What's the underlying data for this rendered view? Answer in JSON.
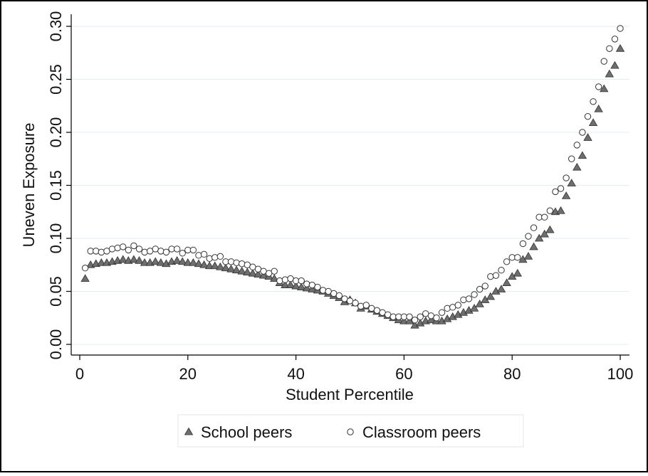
{
  "chart_data": {
    "type": "scatter",
    "xlabel": "Student Percentile",
    "ylabel": "Uneven Exposure",
    "x": [
      1,
      2,
      3,
      4,
      5,
      6,
      7,
      8,
      9,
      10,
      11,
      12,
      13,
      14,
      15,
      16,
      17,
      18,
      19,
      20,
      21,
      22,
      23,
      24,
      25,
      26,
      27,
      28,
      29,
      30,
      31,
      32,
      33,
      34,
      35,
      36,
      37,
      38,
      39,
      40,
      41,
      42,
      43,
      44,
      45,
      46,
      47,
      48,
      49,
      50,
      51,
      52,
      53,
      54,
      55,
      56,
      57,
      58,
      59,
      60,
      61,
      62,
      63,
      64,
      65,
      66,
      67,
      68,
      69,
      70,
      71,
      72,
      73,
      74,
      75,
      76,
      77,
      78,
      79,
      80,
      81,
      82,
      83,
      84,
      85,
      86,
      87,
      88,
      89,
      90,
      91,
      92,
      93,
      94,
      95,
      96,
      97,
      98,
      99,
      100
    ],
    "series": [
      {
        "name": "School peers",
        "color": "#6e6e6e",
        "marker": "triangle",
        "values": [
          0.062,
          0.075,
          0.076,
          0.077,
          0.077,
          0.078,
          0.079,
          0.08,
          0.079,
          0.08,
          0.079,
          0.077,
          0.077,
          0.078,
          0.077,
          0.076,
          0.078,
          0.079,
          0.078,
          0.077,
          0.077,
          0.076,
          0.075,
          0.074,
          0.074,
          0.073,
          0.072,
          0.071,
          0.07,
          0.069,
          0.068,
          0.067,
          0.066,
          0.065,
          0.064,
          0.062,
          0.058,
          0.056,
          0.056,
          0.055,
          0.054,
          0.053,
          0.052,
          0.051,
          0.05,
          0.048,
          0.046,
          0.044,
          0.04,
          0.042,
          0.039,
          0.034,
          0.036,
          0.033,
          0.031,
          0.029,
          0.027,
          0.025,
          0.023,
          0.022,
          0.022,
          0.018,
          0.02,
          0.022,
          0.023,
          0.022,
          0.022,
          0.024,
          0.026,
          0.028,
          0.03,
          0.032,
          0.034,
          0.038,
          0.042,
          0.045,
          0.05,
          0.052,
          0.058,
          0.064,
          0.067,
          0.08,
          0.083,
          0.092,
          0.1,
          0.104,
          0.108,
          0.125,
          0.126,
          0.14,
          0.152,
          0.167,
          0.178,
          0.195,
          0.209,
          0.222,
          0.241,
          0.255,
          0.263,
          0.279
        ]
      },
      {
        "name": "Classroom peers",
        "color": "#ffffff",
        "marker": "circle",
        "values": [
          0.072,
          0.088,
          0.088,
          0.087,
          0.088,
          0.09,
          0.091,
          0.092,
          0.089,
          0.093,
          0.09,
          0.087,
          0.088,
          0.09,
          0.088,
          0.087,
          0.09,
          0.09,
          0.086,
          0.089,
          0.089,
          0.084,
          0.085,
          0.081,
          0.082,
          0.083,
          0.078,
          0.078,
          0.077,
          0.076,
          0.075,
          0.073,
          0.071,
          0.069,
          0.067,
          0.069,
          0.06,
          0.061,
          0.062,
          0.06,
          0.06,
          0.057,
          0.056,
          0.054,
          0.051,
          0.05,
          0.048,
          0.046,
          0.043,
          0.041,
          0.039,
          0.036,
          0.037,
          0.034,
          0.032,
          0.03,
          0.028,
          0.026,
          0.026,
          0.026,
          0.026,
          0.023,
          0.026,
          0.029,
          0.027,
          0.025,
          0.03,
          0.034,
          0.035,
          0.037,
          0.042,
          0.043,
          0.047,
          0.052,
          0.055,
          0.064,
          0.065,
          0.07,
          0.078,
          0.082,
          0.082,
          0.095,
          0.102,
          0.11,
          0.12,
          0.12,
          0.126,
          0.144,
          0.147,
          0.157,
          0.175,
          0.188,
          0.2,
          0.215,
          0.229,
          0.243,
          0.267,
          0.279,
          0.288,
          0.298
        ]
      }
    ],
    "xlim": [
      0,
      100
    ],
    "xticks": [
      0,
      20,
      40,
      60,
      80,
      100
    ],
    "ylim": [
      0,
      0.3
    ],
    "yticks": [
      {
        "value": 0,
        "label": "0.00"
      },
      {
        "value": 0.05,
        "label": "0.05"
      },
      {
        "value": 0.1,
        "label": "0.10"
      },
      {
        "value": 0.15,
        "label": "0.15"
      },
      {
        "value": 0.2,
        "label": "0.20"
      },
      {
        "value": 0.25,
        "label": "0.25"
      },
      {
        "value": 0.3,
        "label": "0.30"
      }
    ],
    "grid": true,
    "legend": "bottom"
  }
}
